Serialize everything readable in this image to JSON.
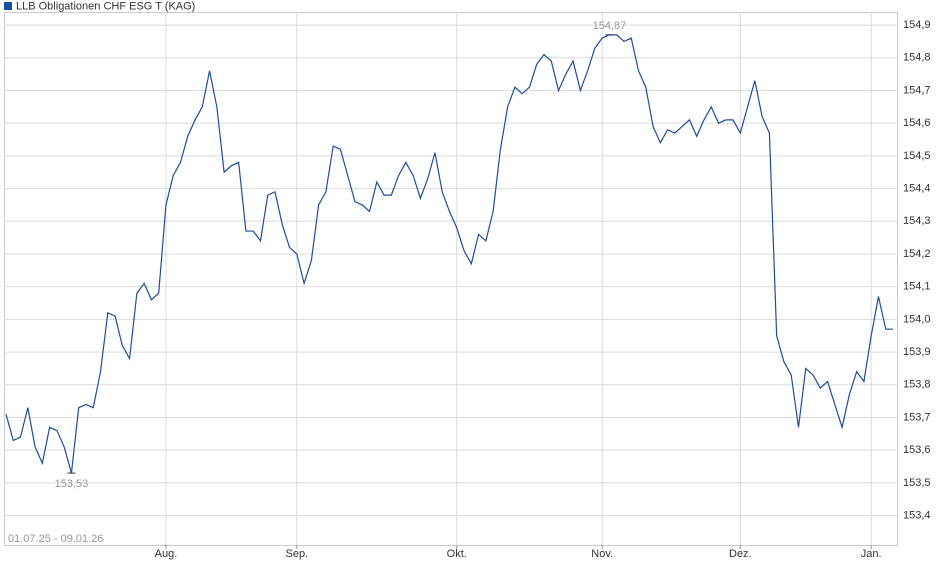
{
  "chart_data": {
    "type": "line",
    "date_range": "01.07.25 - 09.01.26",
    "categories": [
      null,
      null,
      null,
      null,
      null,
      null,
      null,
      null,
      null,
      null,
      null,
      null,
      null,
      null,
      null,
      null,
      null,
      null,
      null,
      null,
      null,
      null,
      "Aug.",
      null,
      null,
      null,
      null,
      null,
      null,
      null,
      null,
      null,
      null,
      null,
      null,
      null,
      null,
      null,
      null,
      null,
      "Sep.",
      null,
      null,
      null,
      null,
      null,
      null,
      null,
      null,
      null,
      null,
      null,
      null,
      null,
      null,
      null,
      null,
      null,
      null,
      null,
      null,
      null,
      "Okt.",
      null,
      null,
      null,
      null,
      null,
      null,
      null,
      null,
      null,
      null,
      null,
      null,
      null,
      null,
      null,
      null,
      null,
      null,
      null,
      "Nov.",
      null,
      null,
      null,
      null,
      null,
      null,
      null,
      null,
      null,
      null,
      null,
      null,
      null,
      null,
      null,
      null,
      null,
      null,
      "Dez.",
      null,
      null,
      null,
      null,
      null,
      null,
      null,
      null,
      null,
      null,
      null,
      null,
      null,
      null,
      null,
      null,
      null,
      "Jan.",
      null,
      null,
      null
    ],
    "series": [
      {
        "name": "LLB Obligationen CHF ESG T (KAG)",
        "color": "#1c4e9a",
        "values": [
          153.71,
          153.63,
          153.64,
          153.73,
          153.61,
          153.56,
          153.67,
          153.66,
          153.61,
          153.53,
          153.73,
          153.74,
          153.73,
          153.84,
          154.02,
          154.01,
          153.92,
          153.88,
          154.08,
          154.11,
          154.06,
          154.08,
          154.35,
          154.44,
          154.48,
          154.56,
          154.61,
          154.65,
          154.76,
          154.65,
          154.45,
          154.47,
          154.48,
          154.27,
          154.27,
          154.24,
          154.38,
          154.39,
          154.29,
          154.22,
          154.2,
          154.11,
          154.18,
          154.35,
          154.39,
          154.53,
          154.52,
          154.44,
          154.36,
          154.35,
          154.33,
          154.42,
          154.38,
          154.38,
          154.44,
          154.48,
          154.44,
          154.37,
          154.43,
          154.51,
          154.39,
          154.33,
          154.28,
          154.21,
          154.17,
          154.26,
          154.24,
          154.33,
          154.52,
          154.65,
          154.71,
          154.69,
          154.71,
          154.78,
          154.81,
          154.79,
          154.7,
          154.75,
          154.79,
          154.7,
          154.76,
          154.83,
          154.86,
          154.87,
          154.87,
          154.85,
          154.86,
          154.76,
          154.71,
          154.59,
          154.54,
          154.58,
          154.57,
          154.59,
          154.61,
          154.56,
          154.61,
          154.65,
          154.6,
          154.61,
          154.61,
          154.57,
          154.65,
          154.73,
          154.62,
          154.57,
          153.95,
          153.87,
          153.83,
          153.67,
          153.85,
          153.83,
          153.79,
          153.81,
          153.74,
          153.67,
          153.77,
          153.84,
          153.81,
          153.95,
          154.07,
          153.97,
          153.97
        ],
        "value_labels": [
          null,
          null,
          null,
          null,
          null,
          null,
          null,
          null,
          null,
          "153,53",
          null,
          null,
          null,
          null,
          null,
          null,
          null,
          null,
          null,
          null,
          null,
          null,
          null,
          null,
          null,
          null,
          null,
          null,
          null,
          null,
          null,
          null,
          null,
          null,
          null,
          null,
          null,
          null,
          null,
          null,
          null,
          null,
          null,
          null,
          null,
          null,
          null,
          null,
          null,
          null,
          null,
          null,
          null,
          null,
          null,
          null,
          null,
          null,
          null,
          null,
          null,
          null,
          null,
          null,
          null,
          null,
          null,
          null,
          null,
          null,
          null,
          null,
          null,
          null,
          null,
          null,
          null,
          null,
          null,
          null,
          null,
          null,
          null,
          "154,87",
          null,
          null,
          null,
          null,
          null,
          null,
          null,
          null,
          null,
          null,
          null,
          null,
          null,
          null,
          null,
          null,
          null,
          null,
          null,
          null,
          null,
          null,
          null,
          null,
          null,
          null,
          null,
          null,
          null,
          null,
          null,
          null,
          null,
          null,
          null,
          null,
          null,
          null,
          null
        ]
      }
    ],
    "ylim": [
      153.31,
      154.94
    ],
    "yticks": [
      {
        "value": 153.4,
        "label": "153,4"
      },
      {
        "value": 153.5,
        "label": "153,5"
      },
      {
        "value": 153.6,
        "label": "153,6"
      },
      {
        "value": 153.7,
        "label": "153,7"
      },
      {
        "value": 153.8,
        "label": "153,8"
      },
      {
        "value": 153.9,
        "label": "153,9"
      },
      {
        "value": 154.0,
        "label": "154,0"
      },
      {
        "value": 154.1,
        "label": "154,1"
      },
      {
        "value": 154.2,
        "label": "154,2"
      },
      {
        "value": 154.3,
        "label": "154,3"
      },
      {
        "value": 154.4,
        "label": "154,4"
      },
      {
        "value": 154.5,
        "label": "154,5"
      },
      {
        "value": 154.6,
        "label": "154,6"
      },
      {
        "value": 154.7,
        "label": "154,7"
      },
      {
        "value": 154.8,
        "label": "154,8"
      },
      {
        "value": 154.9,
        "label": "154,9"
      }
    ],
    "grid": true
  }
}
